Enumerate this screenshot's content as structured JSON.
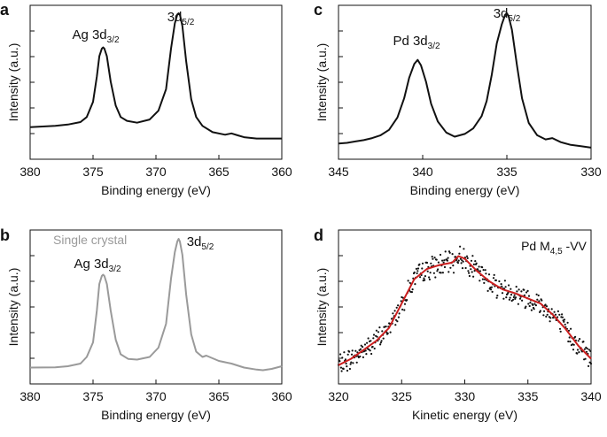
{
  "chart_data": [
    {
      "panel": "a",
      "type": "line",
      "xlabel": "Binding energy (eV)",
      "ylabel": "Intensity (a.u.)",
      "xlim": [
        380,
        360
      ],
      "x_reversed": true,
      "ylim": [
        0,
        100
      ],
      "xticks": [
        "380",
        "375",
        "370",
        "365",
        "360"
      ],
      "annotations": [
        {
          "id": "ag",
          "main": "Ag 3d",
          "sub": "3/2",
          "x": 374.2,
          "y": 80
        },
        {
          "id": "d52",
          "main": "3d",
          "sub": "5/2",
          "x": 368.2,
          "y": 100
        }
      ],
      "series": [
        {
          "color": "#111111",
          "x": [
            380,
            379,
            378,
            377,
            376,
            375.5,
            375,
            374.7,
            374.5,
            374.3,
            374.2,
            374.1,
            373.9,
            373.6,
            373.2,
            372.8,
            372.3,
            371.5,
            370.5,
            369.8,
            369.2,
            368.8,
            368.5,
            368.3,
            368.2,
            368.1,
            367.9,
            367.6,
            367.2,
            366.8,
            366.3,
            365.5,
            364.5,
            364,
            363.5,
            363,
            362,
            361,
            360
          ],
          "y": [
            10,
            10.5,
            11,
            12,
            14,
            18,
            30,
            50,
            66,
            72,
            73,
            72,
            66,
            46,
            27,
            18,
            15,
            13.5,
            16,
            23,
            40,
            72,
            92,
            99,
            100,
            99,
            90,
            62,
            32,
            18,
            11,
            6,
            4,
            5,
            3.5,
            2,
            1,
            1,
            1
          ]
        }
      ]
    },
    {
      "panel": "b",
      "type": "line",
      "xlabel": "Binding energy (eV)",
      "ylabel": "Intensity (a.u.)",
      "xlim": [
        380,
        360
      ],
      "x_reversed": true,
      "ylim": [
        0,
        100
      ],
      "xticks": [
        "380",
        "375",
        "370",
        "365",
        "360"
      ],
      "legend_text": "Single crystal",
      "annotations": [
        {
          "id": "ag",
          "main": "Ag 3d",
          "sub": "3/2",
          "x": 374.3,
          "y": 80
        },
        {
          "id": "d52",
          "main": "3d",
          "sub": "5/2",
          "x": 368.3,
          "y": 100
        }
      ],
      "series": [
        {
          "name": "Single crystal",
          "color": "#9a9a9a",
          "x": [
            380,
            378,
            377,
            376,
            375.5,
            375,
            374.7,
            374.5,
            374.3,
            374.2,
            374.1,
            373.9,
            373.6,
            373.2,
            372.8,
            372.2,
            371.5,
            370.5,
            369.8,
            369.2,
            368.8,
            368.5,
            368.3,
            368.2,
            368.1,
            367.9,
            367.6,
            367.2,
            366.8,
            366.3,
            366,
            365,
            364,
            363,
            362,
            361.5,
            360.8,
            360
          ],
          "y": [
            3,
            3.2,
            4,
            6,
            11,
            22,
            46,
            66,
            72,
            73,
            72,
            66,
            46,
            24,
            13,
            9.5,
            9,
            11,
            18,
            36,
            70,
            90,
            98,
            100,
            98,
            88,
            58,
            28,
            15,
            11,
            12,
            8,
            6,
            3,
            1.5,
            1,
            2,
            4
          ]
        }
      ]
    },
    {
      "panel": "c",
      "type": "line",
      "xlabel": "Binding energy (eV)",
      "ylabel": "Intensity (a.u.)",
      "xlim": [
        345,
        330
      ],
      "x_reversed": true,
      "ylim": [
        0,
        100
      ],
      "xticks": [
        "345",
        "340",
        "335",
        "330"
      ],
      "annotations": [
        {
          "id": "pd",
          "main": "Pd 3d",
          "sub": "3/2",
          "x": 340.3,
          "y": 76
        },
        {
          "id": "d52",
          "main": "3d",
          "sub": "5/2",
          "x": 335.0,
          "y": 100
        }
      ],
      "series": [
        {
          "color": "#111111",
          "x": [
            345,
            344.5,
            344,
            343.5,
            343,
            342.5,
            342,
            341.5,
            341.1,
            340.8,
            340.5,
            340.3,
            340.1,
            339.8,
            339.5,
            339.1,
            338.6,
            338.1,
            337.5,
            337,
            336.5,
            336.2,
            335.9,
            335.6,
            335.3,
            335.1,
            335,
            334.9,
            334.7,
            334.4,
            334.1,
            333.7,
            333.2,
            332.7,
            332.3,
            331.8,
            331.2,
            330.6,
            330
          ],
          "y": [
            5,
            5.5,
            6.5,
            7.5,
            9,
            11,
            15,
            24,
            38,
            53,
            63,
            66,
            62,
            50,
            34,
            21,
            13,
            10,
            12,
            16,
            25,
            36,
            55,
            78,
            92,
            99,
            100,
            98,
            88,
            62,
            38,
            20,
            11,
            8,
            9,
            6,
            4,
            3,
            2
          ]
        }
      ]
    },
    {
      "panel": "d",
      "type": "scatter",
      "legend_text": {
        "main": "Pd M",
        "sub": "4,5",
        "suffix": " -VV"
      },
      "xlabel": "Kinetic energy (eV)",
      "ylabel": "Intensity (a.u.)",
      "xlim": [
        320,
        340
      ],
      "ylim": [
        0,
        100
      ],
      "xticks": [
        "320",
        "325",
        "330",
        "335",
        "340"
      ],
      "fit": {
        "color": "#cc1f1f",
        "x": [
          320,
          321,
          322,
          323,
          324,
          325,
          326,
          327,
          328,
          329,
          329.5,
          330,
          331,
          332,
          333,
          334,
          335,
          336,
          337,
          338,
          339,
          340
        ],
        "y": [
          5,
          10,
          17,
          24,
          34,
          53,
          72,
          80,
          83,
          85,
          90,
          88,
          78,
          70,
          64,
          61,
          57,
          53,
          44,
          33,
          20,
          10
        ]
      },
      "points": {
        "color": "#111111",
        "count": 400
      }
    }
  ]
}
